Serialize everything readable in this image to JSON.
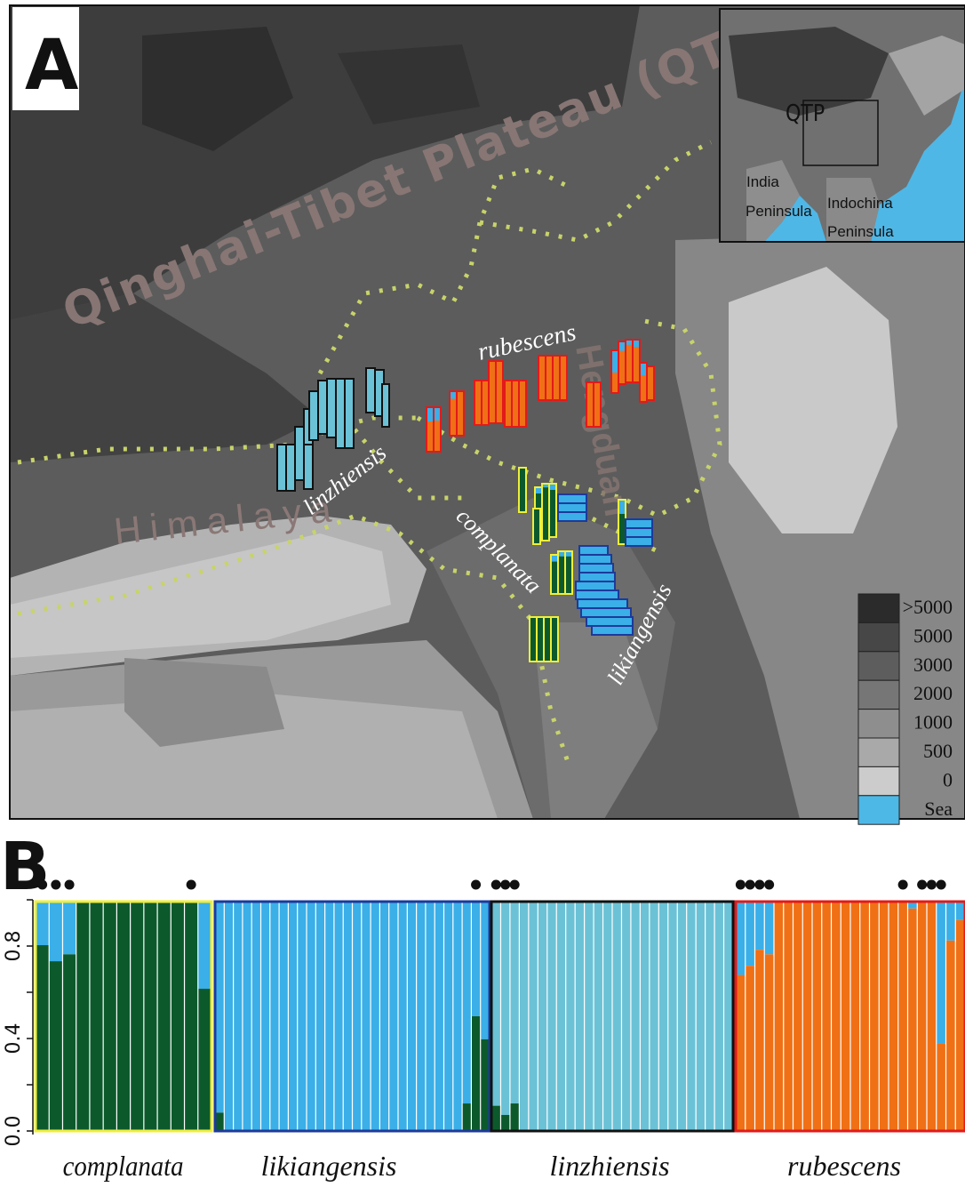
{
  "panel_a": {
    "label": "A",
    "region_title": "Qinghai-Tibet Plateau (QTP)",
    "himalaya_label": "Himalaya",
    "hengduan_label": "Hengduan",
    "species_labels": [
      "rubescens",
      "linzhiensis",
      "complanata",
      "likiangensis"
    ],
    "inset": {
      "qtp": "QTP",
      "india": [
        "India",
        "Peninsula"
      ],
      "indochina": [
        "Indochina",
        "Peninsula"
      ]
    },
    "elevation_legend": [
      ">5000",
      "5000",
      "3000",
      "2000",
      "1000",
      "500",
      "0",
      "Sea"
    ],
    "elevation_colors": [
      "#2b2b2b",
      "#474747",
      "#5d5d5d",
      "#767676",
      "#8e8e8e",
      "#a9a9a9",
      "#cccccc",
      "#4db8e6"
    ]
  },
  "panel_b": {
    "label": "B",
    "y_ticks": [
      "0.0",
      "0.4",
      "0.8"
    ],
    "groups": [
      "complanata",
      "likiangensis",
      "linzhiensis",
      "rubescens"
    ]
  },
  "colors": {
    "complanata": "#0c5a2c",
    "likiangensis": "#3aafe8",
    "linzhiensis": "#6bc2d6",
    "rubescens": "#f07015",
    "complanata_border": "#f0ef3a",
    "likiangensis_border": "#1d3a9a",
    "linzhiensis_border": "#111111",
    "rubescens_border": "#e21a1a"
  },
  "chart_data": {
    "type": "bar",
    "stacked": true,
    "ylim": [
      0,
      1
    ],
    "y_ticks": [
      0.0,
      0.4,
      0.8
    ],
    "groups": [
      {
        "name": "complanata",
        "dots": [
          0,
          1,
          2,
          11
        ],
        "primary_color": "complanata",
        "secondary_color": "likiangensis",
        "primary": [
          0.81,
          0.74,
          0.77,
          1,
          1,
          1,
          1,
          1,
          1,
          1,
          1,
          1,
          0.62
        ],
        "secondary_top": true
      },
      {
        "name": "likiangensis",
        "dots": [
          28
        ],
        "primary_color": "likiangensis",
        "secondary_color": "complanata",
        "primary": [
          0.92,
          1,
          1,
          1,
          1,
          1,
          1,
          1,
          1,
          1,
          1,
          1,
          1,
          1,
          1,
          1,
          1,
          1,
          1,
          1,
          1,
          1,
          1,
          1,
          1,
          1,
          1,
          0.88,
          0.5,
          0.6
        ],
        "secondary_top": false
      },
      {
        "name": "linzhiensis",
        "dots": [
          0,
          1,
          2
        ],
        "primary_color": "linzhiensis",
        "secondary_color": "complanata",
        "primary": [
          0.89,
          0.93,
          0.88,
          1,
          1,
          1,
          1,
          1,
          1,
          1,
          1,
          1,
          1,
          1,
          1,
          1,
          1,
          1,
          1,
          1,
          1,
          1,
          1,
          1,
          1,
          1
        ],
        "secondary_top": false
      },
      {
        "name": "rubescens",
        "dots": [
          0,
          1,
          2,
          3,
          17,
          19,
          20,
          21
        ],
        "primary_color": "rubescens",
        "secondary_color": "likiangensis",
        "primary": [
          0.68,
          0.72,
          0.79,
          0.77,
          1,
          1,
          1,
          1,
          1,
          1,
          1,
          1,
          1,
          1,
          1,
          1,
          1,
          1,
          0.97,
          1,
          1,
          0.38,
          0.83,
          0.92
        ],
        "secondary_top": true
      }
    ]
  }
}
